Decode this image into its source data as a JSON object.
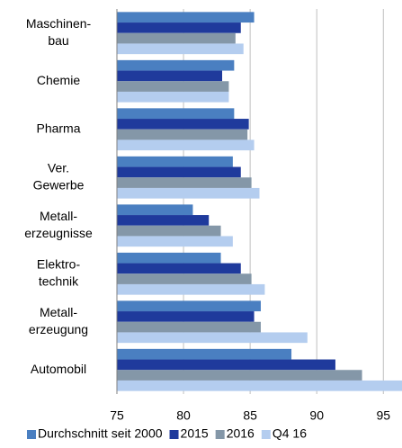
{
  "chart_data": {
    "type": "bar",
    "orientation": "horizontal",
    "categories": [
      [
        "Maschinen-",
        "bau"
      ],
      [
        "Chemie"
      ],
      [
        "Pharma"
      ],
      [
        "Ver.",
        "Gewerbe"
      ],
      [
        "Metall-",
        "erzeugnisse"
      ],
      [
        "Elektro-",
        "technik"
      ],
      [
        "Metall-",
        "erzeugung"
      ],
      [
        "Automobil"
      ]
    ],
    "series": [
      {
        "name": "Durchschnitt seit 2000",
        "color": "#4a7fc1",
        "values": [
          85.3,
          83.8,
          83.8,
          83.7,
          80.7,
          82.8,
          85.8,
          88.1
        ]
      },
      {
        "name": "2015",
        "color": "#1f3a9c",
        "values": [
          84.3,
          82.9,
          84.9,
          84.3,
          81.9,
          84.3,
          85.3,
          91.4
        ]
      },
      {
        "name": "2016",
        "color": "#8497a8",
        "values": [
          83.9,
          83.4,
          84.8,
          85.1,
          82.8,
          85.1,
          85.8,
          93.4
        ]
      },
      {
        "name": "Q4 16",
        "color": "#b4cdef",
        "values": [
          84.5,
          83.4,
          85.3,
          85.7,
          83.7,
          86.1,
          89.3,
          96.4
        ]
      }
    ],
    "xlim": [
      75,
      96.4
    ],
    "xticks": [
      75,
      80,
      85,
      90,
      95
    ],
    "grid": true,
    "legend": "bottom"
  }
}
